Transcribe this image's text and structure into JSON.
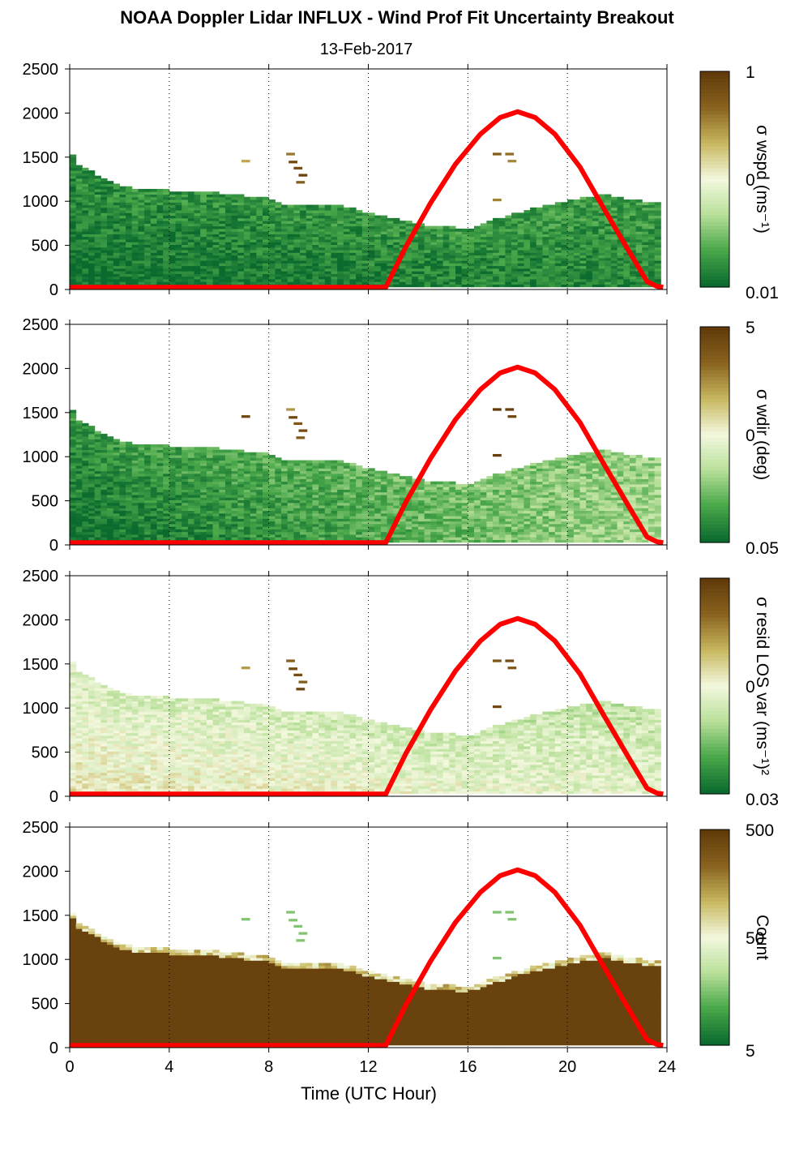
{
  "title": "NOAA Doppler Lidar INFLUX - Wind Prof Fit Uncertainty Breakout",
  "subtitle": "13-Feb-2017",
  "chart_data": {
    "type": "heatmap",
    "xlabel": "Time (UTC Hour)",
    "xlim": [
      0,
      24
    ],
    "ylim": [
      0,
      2500
    ],
    "x_ticks": [
      "0",
      "4",
      "8",
      "12",
      "16",
      "20",
      "24"
    ],
    "y_ticks": [
      "0",
      "500",
      "1000",
      "1500",
      "2000",
      "2500"
    ],
    "grid": "dotted vertical lines every 4 hours",
    "colormap": [
      "#0b6b2e",
      "#4aa84a",
      "#b9e09a",
      "#f3f8de",
      "#c8b860",
      "#8a6420",
      "#623a0a"
    ],
    "overlay": {
      "name": "sun curve",
      "color": "#ff0000",
      "x": [
        0,
        12.7,
        13.5,
        14.5,
        15.5,
        16.5,
        17.3,
        18.0,
        18.7,
        19.5,
        20.5,
        21.5,
        22.5,
        23.2,
        23.6,
        23.85
      ],
      "y": [
        25,
        25,
        480,
        980,
        1420,
        1760,
        1950,
        2015,
        1950,
        1760,
        1390,
        900,
        420,
        90,
        35,
        25
      ]
    },
    "panels": [
      {
        "colorbar_label": "σ wspd (ms⁻¹)",
        "colorbar_ticks": [
          "1",
          "0",
          "0.01"
        ],
        "cloud_top": {
          "x": [
            0,
            0.3,
            0.6,
            1.3,
            2.0,
            3.0,
            4.0,
            6.0,
            8.0,
            8.7,
            10.0,
            11.0,
            12.0,
            13.0,
            14.0,
            15.0,
            16.0,
            16.5,
            17.5,
            18.5,
            19.5,
            20.5,
            21.5,
            22.5,
            23.7
          ],
          "y": [
            1580,
            1400,
            1380,
            1260,
            1160,
            1120,
            1110,
            1080,
            1020,
            950,
            960,
            930,
            860,
            790,
            730,
            700,
            680,
            720,
            820,
            900,
            960,
            1020,
            1060,
            1000,
            980
          ]
        },
        "texture": {
          "left_low": 0.0,
          "right_low": 0.08,
          "edge": 0.25
        }
      },
      {
        "colorbar_label": "σ wdir (deg)",
        "colorbar_ticks": [
          "5",
          "0",
          "0.05"
        ],
        "cloud_top": {
          "x": [
            0,
            0.3,
            0.6,
            1.3,
            2.0,
            3.0,
            4.0,
            6.0,
            8.0,
            8.7,
            10.0,
            11.0,
            12.0,
            13.0,
            14.0,
            15.0,
            16.0,
            16.5,
            17.5,
            18.5,
            19.5,
            20.5,
            21.5,
            22.5,
            23.7
          ],
          "y": [
            1580,
            1400,
            1380,
            1260,
            1160,
            1120,
            1110,
            1080,
            1020,
            950,
            960,
            930,
            860,
            790,
            730,
            700,
            680,
            720,
            820,
            900,
            960,
            1020,
            1060,
            1000,
            980
          ]
        },
        "texture": {
          "left_low": 0.0,
          "right_low": 0.32,
          "edge": 0.3
        }
      },
      {
        "colorbar_label": "σ resid LOS var (ms⁻¹)²",
        "colorbar_ticks": [
          "0",
          "0.03"
        ],
        "cloud_top": {
          "x": [
            0,
            0.3,
            0.6,
            1.3,
            2.0,
            3.0,
            4.0,
            6.0,
            8.0,
            8.7,
            10.0,
            11.0,
            12.0,
            13.0,
            14.0,
            15.0,
            16.0,
            16.5,
            17.5,
            18.5,
            19.5,
            20.5,
            21.5,
            22.5,
            23.7
          ],
          "y": [
            1580,
            1400,
            1380,
            1260,
            1160,
            1120,
            1110,
            1080,
            1020,
            950,
            960,
            930,
            860,
            790,
            730,
            700,
            680,
            720,
            820,
            900,
            960,
            1020,
            1060,
            1000,
            980
          ]
        },
        "texture": {
          "left_low": 0.55,
          "right_low": 0.45,
          "edge": 0.3
        }
      },
      {
        "colorbar_label": "Count",
        "colorbar_ticks": [
          "500",
          "50",
          "5"
        ],
        "cloud_top": {
          "x": [
            0,
            0.3,
            0.6,
            1.3,
            2.0,
            3.0,
            4.0,
            6.0,
            8.0,
            8.7,
            10.0,
            11.0,
            12.0,
            13.0,
            14.0,
            15.0,
            16.0,
            16.5,
            17.5,
            18.5,
            19.5,
            20.5,
            21.5,
            22.5,
            23.7
          ],
          "y": [
            1580,
            1400,
            1380,
            1260,
            1160,
            1120,
            1110,
            1080,
            1020,
            950,
            960,
            930,
            860,
            790,
            730,
            700,
            680,
            720,
            820,
            900,
            960,
            1020,
            1060,
            1000,
            980
          ]
        },
        "texture": {
          "left_low": 1.0,
          "right_low": 1.0,
          "edge": 0.35
        }
      }
    ]
  }
}
